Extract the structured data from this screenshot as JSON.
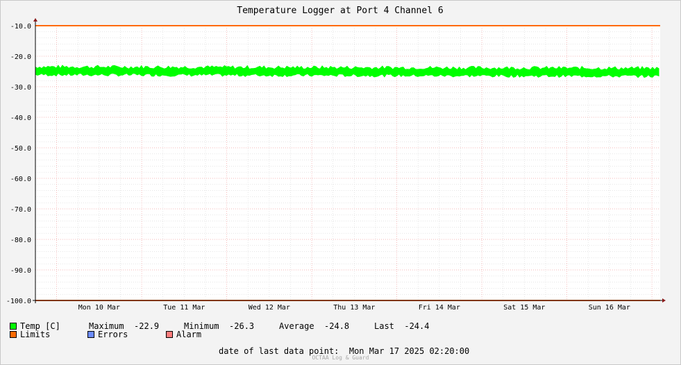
{
  "chart_data": {
    "type": "line",
    "title": "Temperature Logger at Port 4 Channel 6",
    "ylim": [
      -100,
      -10
    ],
    "yticks": [
      -10,
      -20,
      -30,
      -40,
      -50,
      -60,
      -70,
      -80,
      -90,
      -100
    ],
    "ytick_labels": [
      "-10.0",
      "-20.0",
      "-30.0",
      "-40.0",
      "-50.0",
      "-60.0",
      "-70.0",
      "-80.0",
      "-90.0",
      "-100.0"
    ],
    "xlim": [
      "2025-03-09T18:00",
      "2025-03-17T02:20"
    ],
    "xtick_labels": [
      "Mon 10 Mar",
      "Tue 11 Mar",
      "Wed 12 Mar",
      "Thu 13 Mar",
      "Fri 14 Mar",
      "Sat 15 Mar",
      "Sun 16 Mar"
    ],
    "xtick_dates": [
      "2025-03-10",
      "2025-03-11",
      "2025-03-12",
      "2025-03-13",
      "2025-03-14",
      "2025-03-15",
      "2025-03-16"
    ],
    "limits": [
      -10,
      -100
    ],
    "temp_band": {
      "upper": -23.5,
      "lower": -26.0
    },
    "grid": true,
    "colors": {
      "temp": "#00ff00",
      "limits": "#ff6a00",
      "errors": "#6d8cff",
      "alarm": "#ff7d7d"
    }
  },
  "legend": {
    "temp_label": "Temp [C]",
    "max_label": "Maximum",
    "max_value": "-22.9",
    "min_label": "Minimum",
    "min_value": "-26.3",
    "avg_label": "Average",
    "avg_value": "-24.8",
    "last_label": "Last",
    "last_value": "-24.4",
    "limits_label": "Limits",
    "errors_label": "Errors",
    "alarm_label": "Alarm"
  },
  "footer": {
    "last_point_label": "date of last data point:",
    "last_point_value": "Mon Mar 17 2025 02:20:00",
    "credit": "OCTAA Log & Guard"
  }
}
